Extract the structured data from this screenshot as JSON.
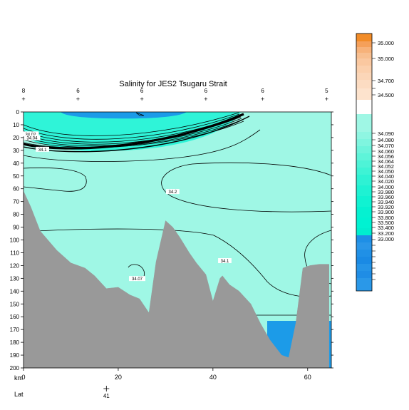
{
  "chart_data": {
    "type": "contour",
    "title": "Salinity for JES2 Tsugaru Strait",
    "x_axis": {
      "label": "km",
      "range": [
        0,
        65
      ],
      "ticks": [
        "0",
        "20",
        "40",
        "60"
      ],
      "tick_values": [
        0,
        20,
        40,
        60
      ]
    },
    "y_axis": {
      "range": [
        0,
        200
      ],
      "inverted": true,
      "ticks": [
        "0",
        "10",
        "20",
        "30",
        "40",
        "50",
        "60",
        "70",
        "80",
        "90",
        "100",
        "110",
        "120",
        "130",
        "140",
        "150",
        "160",
        "170",
        "180",
        "190",
        "200"
      ],
      "tick_values": [
        0,
        10,
        20,
        30,
        40,
        50,
        60,
        70,
        80,
        90,
        100,
        110,
        120,
        130,
        140,
        150,
        160,
        170,
        180,
        190,
        200
      ]
    },
    "lat_axis": {
      "label": "Lat",
      "tick_label": "41",
      "tick_km": 17.5
    },
    "stations": [
      {
        "label": "8",
        "km": 0
      },
      {
        "label": "6",
        "km": 11.5
      },
      {
        "label": "6",
        "km": 25
      },
      {
        "label": "6",
        "km": 38.5
      },
      {
        "label": "6",
        "km": 50.5
      },
      {
        "label": "5",
        "km": 64
      }
    ],
    "contour_labels": [
      {
        "text": "34.02",
        "km": 1.5,
        "depth": 18
      },
      {
        "text": "34.04",
        "km": 1.8,
        "depth": 21
      },
      {
        "text": "34.1",
        "km": 4,
        "depth": 30
      },
      {
        "text": "34.2",
        "km": 31.5,
        "depth": 63
      },
      {
        "text": "34.1",
        "km": 42.5,
        "depth": 117
      },
      {
        "text": "34.07",
        "km": 24,
        "depth": 131
      }
    ],
    "bathymetry": {
      "km": [
        0,
        1.5,
        3.5,
        7,
        10,
        13,
        15,
        17.5,
        20,
        22.5,
        24.5,
        26.5,
        28,
        30,
        31.5,
        33,
        35,
        36.5,
        38.5,
        40,
        41.5,
        42,
        43.5,
        45.5,
        48,
        50,
        52,
        54.5,
        56,
        57.5,
        59,
        60.5,
        62.5,
        64.5
      ],
      "depth": [
        62,
        74,
        93,
        108,
        118,
        122,
        128,
        138,
        137,
        143,
        146,
        157,
        117,
        85,
        90,
        98,
        110,
        118,
        127,
        148,
        130,
        128,
        135,
        140,
        150,
        165,
        178,
        190,
        192,
        165,
        122,
        120,
        119,
        119
      ]
    },
    "legend": {
      "levels": [
        "35.000",
        "35.000",
        "34.700",
        "34.500",
        "34.090",
        "34.080",
        "34.070",
        "34.060",
        "34.056",
        "34.064",
        "34.052",
        "34.050",
        "34.040",
        "34.020",
        "34.000",
        "33.980",
        "33.960",
        "33.940",
        "33.920",
        "33.900",
        "33.800",
        "33.500",
        "33.400",
        "33.200",
        "33.000"
      ],
      "colors": {
        "high": "#f28c28",
        "mid_pale": "#fde6d4",
        "fresh_cyan": "#9ff7e5",
        "cyan": "#00f2d2",
        "blue": "#1e8fe6",
        "sea": "#9ff7e5",
        "land": "#999999",
        "surface_blue": "#1c9be8"
      }
    }
  }
}
